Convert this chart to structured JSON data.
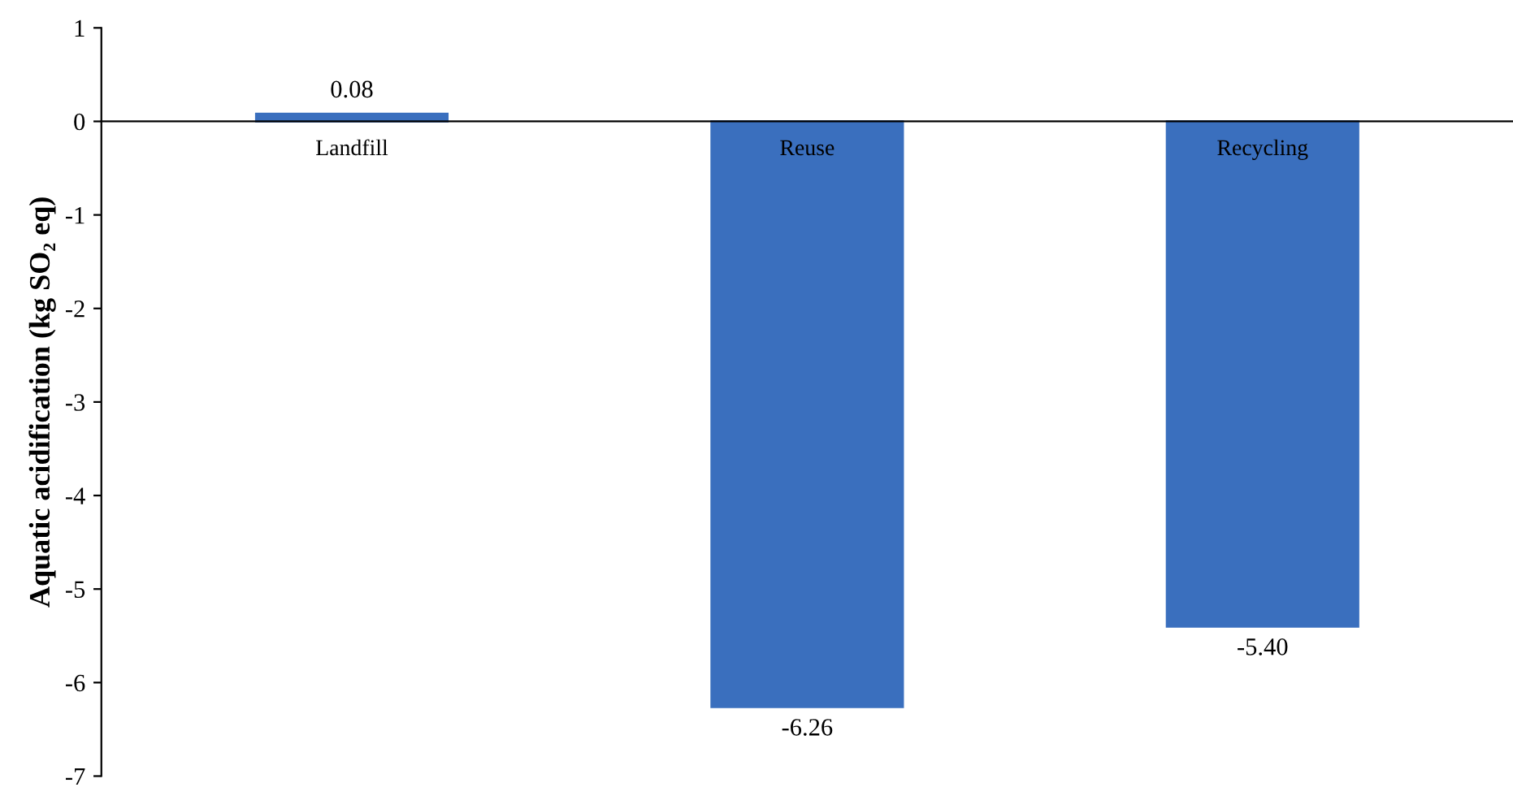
{
  "chart_data": {
    "type": "bar",
    "ylabel": "Aquatic acidification (kg SO₂ eq)",
    "categories": [
      "Landfill",
      "Reuse",
      "Recycling"
    ],
    "values": [
      0.08,
      -6.26,
      -5.4
    ],
    "value_labels": [
      "0.08",
      "-6.26",
      "-5.40"
    ],
    "color": "#3a6fbe",
    "ylim": [
      -7,
      1
    ],
    "yticks": [
      -7,
      -6,
      -5,
      -4,
      -3,
      -2,
      -1,
      0,
      1
    ],
    "grid": false,
    "legend": false
  }
}
